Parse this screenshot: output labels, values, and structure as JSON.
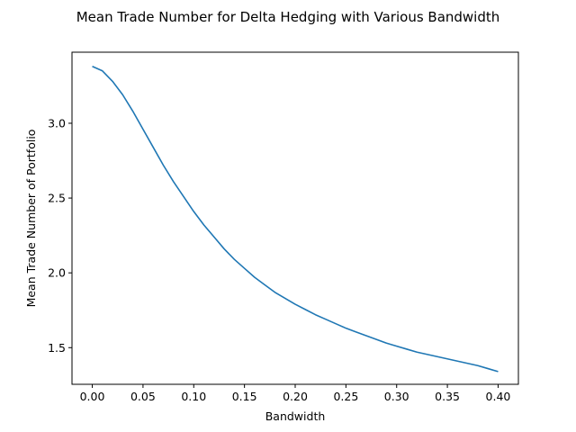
{
  "chart_data": {
    "type": "line",
    "title": "Mean Trade Number for Delta Hedging with Various Bandwidth",
    "xlabel": "Bandwidth",
    "ylabel": "Mean Trade Number of Portfolio",
    "xlim": [
      -0.02,
      0.42
    ],
    "ylim": [
      1.255,
      3.475
    ],
    "x_ticks": [
      0.0,
      0.05,
      0.1,
      0.15,
      0.2,
      0.25,
      0.3,
      0.35,
      0.4
    ],
    "x_tick_labels": [
      "0.00",
      "0.05",
      "0.10",
      "0.15",
      "0.20",
      "0.25",
      "0.30",
      "0.35",
      "0.40"
    ],
    "y_ticks": [
      1.5,
      2.0,
      2.5,
      3.0
    ],
    "y_tick_labels": [
      "1.5",
      "2.0",
      "2.5",
      "3.0"
    ],
    "grid": false,
    "series": [
      {
        "color": "#1f77b4",
        "x": [
          0.0,
          0.01,
          0.02,
          0.03,
          0.04,
          0.05,
          0.06,
          0.07,
          0.08,
          0.09,
          0.1,
          0.11,
          0.12,
          0.13,
          0.14,
          0.15,
          0.16,
          0.17,
          0.18,
          0.19,
          0.2,
          0.21,
          0.22,
          0.23,
          0.24,
          0.25,
          0.26,
          0.27,
          0.28,
          0.29,
          0.3,
          0.31,
          0.32,
          0.33,
          0.34,
          0.35,
          0.36,
          0.37,
          0.38,
          0.39,
          0.4
        ],
        "y": [
          3.38,
          3.35,
          3.28,
          3.19,
          3.08,
          2.96,
          2.84,
          2.72,
          2.61,
          2.51,
          2.41,
          2.32,
          2.24,
          2.16,
          2.09,
          2.03,
          1.97,
          1.92,
          1.87,
          1.83,
          1.79,
          1.755,
          1.72,
          1.69,
          1.66,
          1.63,
          1.605,
          1.58,
          1.555,
          1.53,
          1.51,
          1.49,
          1.47,
          1.455,
          1.44,
          1.425,
          1.41,
          1.395,
          1.38,
          1.36,
          1.34
        ]
      }
    ]
  }
}
